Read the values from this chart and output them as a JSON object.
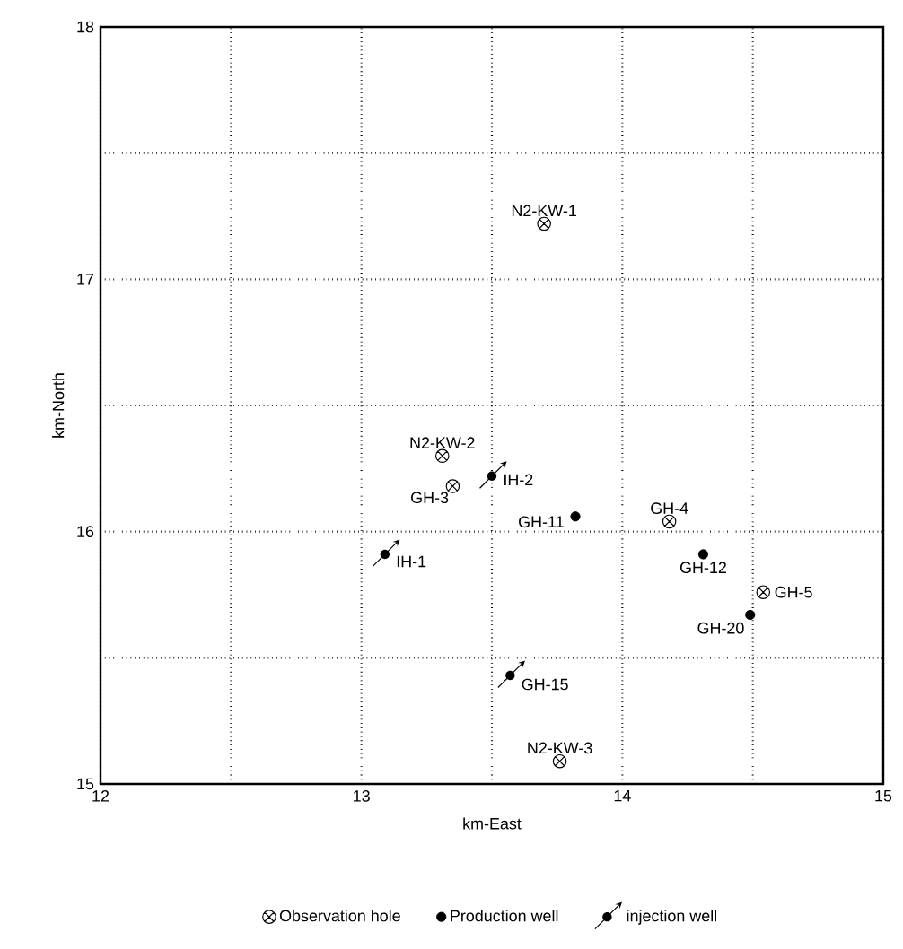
{
  "chart_data": {
    "type": "scatter",
    "xlabel": "km-East",
    "ylabel": "km-North",
    "xlim": [
      12,
      15
    ],
    "ylim": [
      15,
      18
    ],
    "xticks": [
      12,
      {
        "value": 12.5,
        "label": null
      },
      13,
      {
        "value": 13.5,
        "label": null
      },
      14,
      {
        "value": 14.5,
        "label": null
      },
      15
    ],
    "yticks": [
      15,
      {
        "value": 15.5,
        "label": null
      },
      16,
      {
        "value": 16.5,
        "label": null
      },
      17,
      {
        "value": 17.5,
        "label": null
      },
      18
    ],
    "grid": true,
    "legend": "bottom",
    "series": [
      {
        "name": "Observation hole",
        "color": "#000000",
        "marker": "cross",
        "x": [
          13.7,
          13.31,
          13.35,
          14.18,
          14.54,
          13.76
        ],
        "values": [
          17.22,
          16.3,
          16.18,
          16.04,
          15.76,
          15.09
        ]
      },
      {
        "name": "Production well",
        "color": "#000000",
        "marker": "circle",
        "x": [
          13.82,
          14.31,
          14.49
        ],
        "values": [
          16.06,
          15.91,
          15.67
        ]
      },
      {
        "name": "injection well",
        "color": "#000000",
        "marker": "circle",
        "x": [
          13.5,
          13.09,
          13.57
        ],
        "values": [
          16.22,
          15.91,
          15.43
        ]
      }
    ],
    "annotations": [
      {
        "text": "N2-KW-1",
        "x": 13.7,
        "y": 17.22
      },
      {
        "text": "N2-KW-2",
        "x": 13.31,
        "y": 16.3
      },
      {
        "text": "GH-3",
        "x": 13.35,
        "y": 16.18
      },
      {
        "text": "IH-2",
        "x": 13.5,
        "y": 16.22
      },
      {
        "text": "GH-11",
        "x": 13.82,
        "y": 16.06
      },
      {
        "text": "IH-1",
        "x": 13.09,
        "y": 15.91
      },
      {
        "text": "GH-4",
        "x": 14.18,
        "y": 16.04
      },
      {
        "text": "GH-12",
        "x": 14.31,
        "y": 15.91
      },
      {
        "text": "GH-5",
        "x": 14.54,
        "y": 15.76
      },
      {
        "text": "GH-20",
        "x": 14.49,
        "y": 15.67
      },
      {
        "text": "GH-15",
        "x": 13.57,
        "y": 15.43
      },
      {
        "text": "N2-KW-3",
        "x": 13.76,
        "y": 15.09
      }
    ]
  }
}
